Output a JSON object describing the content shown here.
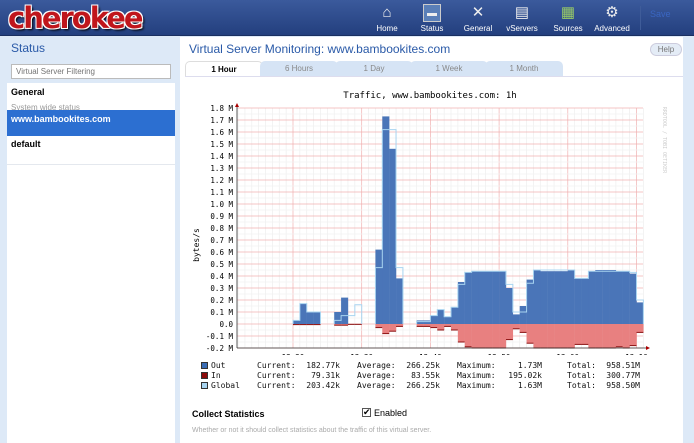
{
  "header": {
    "logo": "cherokee",
    "nav": [
      {
        "label": "Home",
        "icon": "home-icon"
      },
      {
        "label": "Status",
        "icon": "status-monitor-icon"
      },
      {
        "label": "General",
        "icon": "tools-icon"
      },
      {
        "label": "vServers",
        "icon": "vservers-icon"
      },
      {
        "label": "Sources",
        "icon": "sources-icon"
      },
      {
        "label": "Advanced",
        "icon": "gear-icon"
      }
    ],
    "save": "Save"
  },
  "sidebar": {
    "title": "Status",
    "filter_placeholder": "Virtual Server Filtering",
    "items": [
      {
        "label": "General",
        "sub": "System wide status"
      },
      {
        "label": "www.bambookites.com",
        "selected": true
      },
      {
        "label": "default"
      }
    ]
  },
  "main": {
    "title": "Virtual Server Monitoring: www.bambookites.com",
    "help": "Help",
    "tabs": [
      "1 Hour",
      "6 Hours",
      "1 Day",
      "1 Week",
      "1 Month"
    ],
    "active_tab": "1 Hour"
  },
  "chart_data": {
    "type": "area",
    "title": "Traffic, www.bambookites.com: 1h",
    "ylabel": "bytes/s",
    "watermark": "RRDTOOL / TOBI OETIKER",
    "ylim": [
      -0.2,
      1.8
    ],
    "yunit": "M",
    "yticks": [
      "1.8 M",
      "1.7 M",
      "1.6 M",
      "1.5 M",
      "1.4 M",
      "1.3 M",
      "1.2 M",
      "1.1 M",
      "1.0 M",
      "0.9 M",
      "0.8 M",
      "0.7 M",
      "0.6 M",
      "0.5 M",
      "0.4 M",
      "0.3 M",
      "0.2 M",
      "0.1 M",
      "0.0",
      "-0.1 M",
      "-0.2 M"
    ],
    "xticks": [
      "12:20",
      "12:30",
      "12:40",
      "12:50",
      "13:00",
      "13:10"
    ],
    "grid": true,
    "x_start": "12:20",
    "x_step_minutes": 1,
    "series": [
      {
        "name": "Out",
        "color": "#4a75b8",
        "values": [
          0.03,
          0.17,
          0.1,
          0.1,
          null,
          null,
          0.1,
          0.22,
          null,
          null,
          null,
          null,
          0.62,
          1.73,
          1.46,
          0.38,
          null,
          null,
          0.03,
          0.03,
          0.07,
          0.12,
          0.06,
          0.14,
          0.35,
          0.43,
          0.44,
          0.44,
          0.44,
          0.44,
          0.44,
          0.3,
          0.08,
          0.15,
          0.37,
          0.45,
          0.44,
          0.44,
          0.44,
          0.44,
          0.45,
          0.38,
          0.38,
          0.44,
          0.45,
          0.45,
          0.45,
          0.44,
          0.44,
          0.42,
          0.18
        ]
      },
      {
        "name": "In",
        "color": "#e88080",
        "line": "#8b1010",
        "values": [
          -0.005,
          -0.005,
          -0.005,
          -0.005,
          null,
          null,
          -0.01,
          -0.01,
          -0.003,
          -0.003,
          null,
          null,
          -0.03,
          -0.08,
          -0.06,
          -0.02,
          null,
          null,
          -0.02,
          -0.02,
          -0.03,
          -0.05,
          -0.02,
          -0.05,
          -0.15,
          -0.19,
          -0.2,
          -0.2,
          -0.2,
          -0.2,
          -0.2,
          -0.13,
          -0.04,
          -0.07,
          -0.16,
          -0.2,
          -0.2,
          -0.2,
          -0.2,
          -0.2,
          -0.2,
          -0.17,
          -0.17,
          -0.2,
          -0.2,
          -0.2,
          -0.2,
          -0.19,
          -0.2,
          -0.18,
          -0.07
        ]
      },
      {
        "name": "Global",
        "color": "#a8d4f0",
        "values": [
          0.03,
          0.17,
          0.1,
          0.1,
          null,
          null,
          0.03,
          0.07,
          0.07,
          0.16,
          null,
          null,
          0.47,
          1.62,
          1.62,
          0.47,
          null,
          null,
          0.02,
          0.02,
          0.07,
          0.12,
          0.06,
          0.14,
          0.33,
          0.43,
          0.44,
          0.44,
          0.44,
          0.44,
          0.44,
          0.33,
          0.1,
          0.1,
          0.34,
          0.45,
          0.45,
          0.45,
          0.45,
          0.45,
          0.45,
          0.38,
          0.38,
          0.44,
          0.44,
          0.44,
          0.44,
          0.44,
          0.44,
          0.43,
          0.2
        ]
      }
    ],
    "legend": [
      {
        "name": "Out",
        "color": "#3a6db5",
        "current": "182.77k",
        "average": "266.25k",
        "maximum": "1.73M",
        "total": "958.51M"
      },
      {
        "name": "In",
        "color": "#8b0a0a",
        "current": "79.31k",
        "average": "83.55k",
        "maximum": "195.02k",
        "total": "300.77M"
      },
      {
        "name": "Global",
        "color": "#a8d4f0",
        "current": "203.42k",
        "average": "266.25k",
        "maximum": "1.63M",
        "total": "958.50M"
      }
    ],
    "legend_labels": {
      "current": "Current:",
      "average": "Average:",
      "maximum": "Maximum:",
      "total": "Total:"
    }
  },
  "stats": {
    "label": "Collect Statistics",
    "checkbox": "Enabled",
    "checked": true,
    "description": "Whether or not it should collect statistics about the traffic of this virtual server."
  }
}
